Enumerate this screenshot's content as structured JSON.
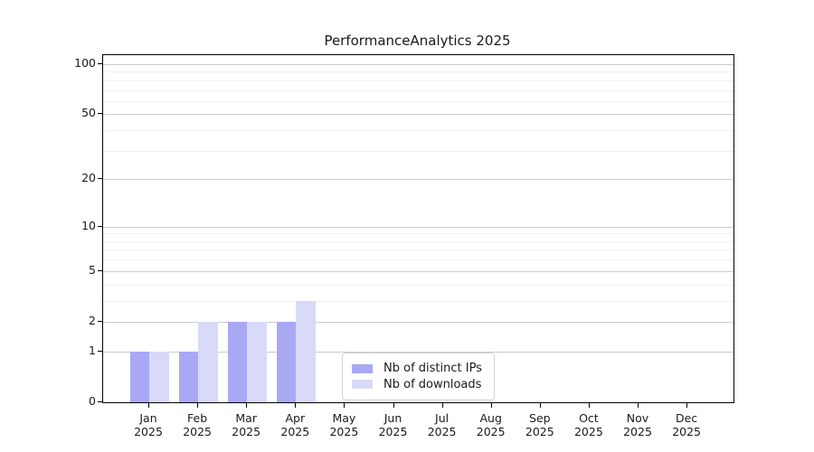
{
  "chart_data": {
    "type": "bar",
    "title": "PerformanceAnalytics 2025",
    "categories": [
      "Jan 2025",
      "Feb 2025",
      "Mar 2025",
      "Apr 2025",
      "May 2025",
      "Jun 2025",
      "Jul 2025",
      "Aug 2025",
      "Sep 2025",
      "Oct 2025",
      "Nov 2025",
      "Dec 2025"
    ],
    "series": [
      {
        "name": "Nb of distinct IPs",
        "color": "#a8a8f5",
        "values": [
          1,
          1,
          2,
          2,
          0,
          0,
          0,
          0,
          0,
          0,
          0,
          0
        ]
      },
      {
        "name": "Nb of downloads",
        "color": "#d9d9f8",
        "values": [
          1,
          2,
          2,
          3,
          0,
          0,
          0,
          0,
          0,
          0,
          0,
          0
        ]
      }
    ],
    "xlabel": "",
    "ylabel": "",
    "ylim": [
      0,
      100
    ],
    "y_axis": {
      "scale": "log10(1+y) (symlog-like, linear 0-1)",
      "major_ticks": [
        0,
        1,
        2,
        5,
        10,
        20,
        50,
        100
      ],
      "minor_ticks": [
        3,
        4,
        6,
        7,
        8,
        9,
        30,
        40,
        60,
        70,
        80,
        90
      ]
    },
    "grid": {
      "enabled": true,
      "major_color": "#cccccc",
      "minor_color": "#f0f0f0"
    },
    "legend": {
      "position": "inside lower-center",
      "entries": [
        "Nb of distinct IPs",
        "Nb of downloads"
      ]
    }
  },
  "colors": {
    "background": "#ffffff",
    "spine": "#000000",
    "text": "#1a1a1a"
  }
}
